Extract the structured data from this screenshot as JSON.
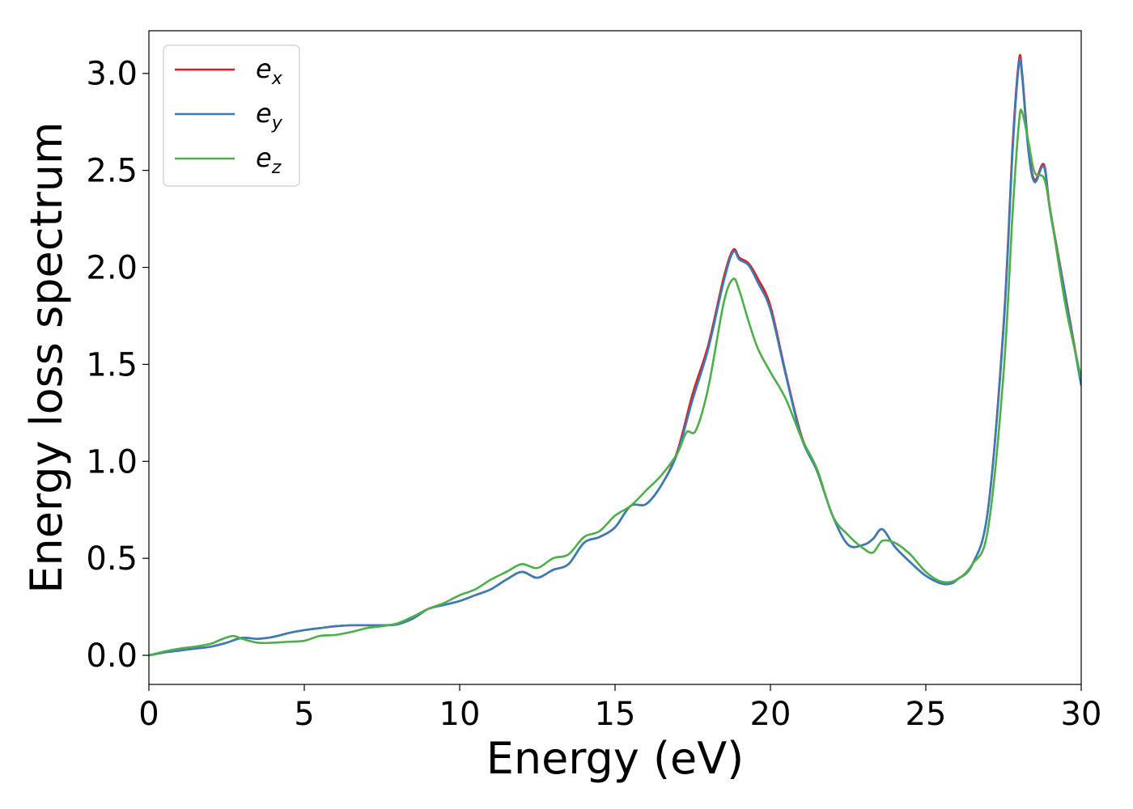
{
  "chart_data": {
    "type": "line",
    "xlabel": "Energy (eV)",
    "ylabel": "Energy loss spectrum",
    "xlim": [
      0,
      30
    ],
    "ylim": [
      -0.15,
      3.22
    ],
    "xticks": [
      0,
      5,
      10,
      15,
      20,
      25,
      30
    ],
    "xtick_labels": [
      "0",
      "5",
      "10",
      "15",
      "20",
      "25",
      "30"
    ],
    "yticks": [
      0.0,
      0.5,
      1.0,
      1.5,
      2.0,
      2.5,
      3.0
    ],
    "ytick_labels": [
      "0.0",
      "0.5",
      "1.0",
      "1.5",
      "2.0",
      "2.5",
      "3.0"
    ],
    "grid": false,
    "legend_position": "top-left",
    "series": [
      {
        "name": "e_x",
        "legend_base": "e",
        "legend_sub": "x",
        "color": "#e41a1c",
        "x": [
          0,
          0.5,
          1,
          1.5,
          2,
          2.5,
          3,
          3.5,
          4,
          4.5,
          5,
          5.5,
          6,
          6.5,
          7,
          7.5,
          8,
          8.5,
          9,
          9.5,
          10,
          10.5,
          11,
          11.5,
          12,
          12.5,
          13,
          13.5,
          14,
          14.5,
          15,
          15.5,
          16,
          16.5,
          17,
          17.5,
          18,
          18.5,
          18.8,
          19,
          19.3,
          19.6,
          20,
          20.5,
          21,
          21.5,
          22,
          22.5,
          23,
          23.3,
          23.6,
          24,
          24.5,
          25,
          25.5,
          25.8,
          26,
          26.5,
          27,
          27.5,
          27.8,
          28,
          28.1,
          28.3,
          28.5,
          28.8,
          29,
          29.5,
          30
        ],
        "y": [
          0,
          0.015,
          0.025,
          0.035,
          0.045,
          0.065,
          0.09,
          0.085,
          0.095,
          0.115,
          0.13,
          0.14,
          0.15,
          0.155,
          0.155,
          0.155,
          0.16,
          0.19,
          0.24,
          0.26,
          0.28,
          0.31,
          0.34,
          0.39,
          0.43,
          0.4,
          0.44,
          0.47,
          0.58,
          0.61,
          0.66,
          0.77,
          0.78,
          0.88,
          1.05,
          1.35,
          1.6,
          1.95,
          2.09,
          2.05,
          2.02,
          1.94,
          1.8,
          1.45,
          1.13,
          0.95,
          0.72,
          0.57,
          0.57,
          0.6,
          0.65,
          0.56,
          0.48,
          0.41,
          0.37,
          0.37,
          0.39,
          0.47,
          0.75,
          1.7,
          2.65,
          3.07,
          3.0,
          2.62,
          2.45,
          2.53,
          2.3,
          1.85,
          1.4
        ]
      },
      {
        "name": "e_y",
        "legend_base": "e",
        "legend_sub": "y",
        "color": "#377eb8",
        "x": [
          0,
          0.5,
          1,
          1.5,
          2,
          2.5,
          3,
          3.5,
          4,
          4.5,
          5,
          5.5,
          6,
          6.5,
          7,
          7.5,
          8,
          8.5,
          9,
          9.5,
          10,
          10.5,
          11,
          11.5,
          12,
          12.5,
          13,
          13.5,
          14,
          14.5,
          15,
          15.5,
          16,
          16.5,
          17,
          17.5,
          18,
          18.5,
          18.8,
          19,
          19.3,
          19.6,
          20,
          20.5,
          21,
          21.5,
          22,
          22.5,
          23,
          23.3,
          23.6,
          24,
          24.5,
          25,
          25.5,
          25.8,
          26,
          26.5,
          27,
          27.5,
          27.8,
          28,
          28.1,
          28.3,
          28.5,
          28.8,
          29,
          29.5,
          30
        ],
        "y": [
          0,
          0.015,
          0.025,
          0.035,
          0.045,
          0.065,
          0.09,
          0.085,
          0.095,
          0.115,
          0.13,
          0.14,
          0.15,
          0.155,
          0.155,
          0.155,
          0.16,
          0.19,
          0.24,
          0.26,
          0.28,
          0.31,
          0.34,
          0.39,
          0.43,
          0.4,
          0.44,
          0.47,
          0.58,
          0.61,
          0.66,
          0.77,
          0.78,
          0.88,
          1.04,
          1.32,
          1.58,
          1.93,
          2.08,
          2.04,
          2.01,
          1.92,
          1.78,
          1.44,
          1.12,
          0.95,
          0.72,
          0.57,
          0.57,
          0.6,
          0.65,
          0.56,
          0.48,
          0.41,
          0.37,
          0.37,
          0.39,
          0.47,
          0.75,
          1.68,
          2.62,
          3.05,
          2.98,
          2.6,
          2.44,
          2.52,
          2.29,
          1.84,
          1.39
        ]
      },
      {
        "name": "e_z",
        "legend_base": "e",
        "legend_sub": "z",
        "color": "#4daf4a",
        "x": [
          0,
          0.5,
          1,
          1.5,
          2,
          2.3,
          2.7,
          3,
          3.5,
          4,
          4.5,
          5,
          5.5,
          6,
          6.5,
          7,
          7.5,
          8,
          8.5,
          9,
          9.5,
          10,
          10.5,
          11,
          11.5,
          12,
          12.5,
          13,
          13.5,
          14,
          14.5,
          15,
          15.5,
          16,
          16.5,
          17,
          17.3,
          17.6,
          18,
          18.5,
          18.8,
          19,
          19.3,
          19.6,
          20,
          20.5,
          21,
          21.5,
          22,
          22.5,
          23,
          23.3,
          23.6,
          24,
          24.5,
          25,
          25.5,
          26,
          26.5,
          27,
          27.5,
          27.8,
          28,
          28.1,
          28.3,
          28.5,
          28.8,
          29,
          29.5,
          30
        ],
        "y": [
          0,
          0.02,
          0.035,
          0.045,
          0.06,
          0.08,
          0.1,
          0.085,
          0.065,
          0.065,
          0.07,
          0.075,
          0.1,
          0.105,
          0.12,
          0.14,
          0.15,
          0.165,
          0.2,
          0.24,
          0.27,
          0.31,
          0.34,
          0.39,
          0.43,
          0.47,
          0.45,
          0.5,
          0.52,
          0.61,
          0.64,
          0.72,
          0.77,
          0.85,
          0.93,
          1.04,
          1.15,
          1.16,
          1.38,
          1.82,
          1.94,
          1.88,
          1.72,
          1.58,
          1.46,
          1.32,
          1.12,
          0.96,
          0.72,
          0.62,
          0.55,
          0.53,
          0.59,
          0.58,
          0.52,
          0.43,
          0.38,
          0.39,
          0.47,
          0.65,
          1.45,
          2.3,
          2.75,
          2.8,
          2.65,
          2.49,
          2.46,
          2.3,
          1.8,
          1.43
        ]
      }
    ]
  }
}
